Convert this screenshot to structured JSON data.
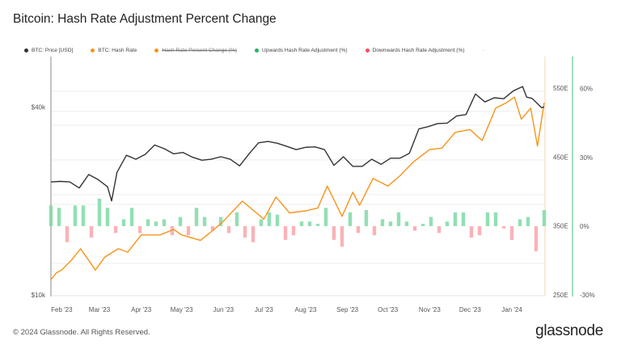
{
  "title": "Bitcoin: Hash Rate Adjustment Percent Change",
  "footer": "© 2024 Glassnode. All Rights Reserved.",
  "logo": "glassnode",
  "colors": {
    "price": "#333333",
    "hash_rate": "#f7931a",
    "up": "#7fd9a6",
    "down": "#f9a5ab",
    "pct_axis": "#7fd9a6",
    "hash_axis": "#fbe3c8"
  },
  "legend": [
    {
      "label": "BTC: Price [USD]",
      "color": "#333333",
      "hidden": false
    },
    {
      "label": "BTC: Hash Rate",
      "color": "#f7931a",
      "hidden": false
    },
    {
      "label": "Hash Rate Percent Change (%)",
      "color": "#f7931a",
      "hidden": true
    },
    {
      "label": "Upwards Hash Rate Adjustment (%)",
      "color": "#22b35e",
      "hidden": false
    },
    {
      "label": "Downwards Hash Rate Adjustment (%)",
      "color": "#f0505a",
      "hidden": false
    },
    {
      "label": "-",
      "color": "",
      "hidden": false
    }
  ],
  "chart_data": {
    "type": "line",
    "title": "Bitcoin: Hash Rate Adjustment Percent Change",
    "grid": true,
    "legend_position": "top",
    "x_ticks": [
      "Feb '23",
      "Mar '23",
      "Apr '23",
      "May '23",
      "Jun '23",
      "Jul '23",
      "Aug '23",
      "Sep '23",
      "Oct '23",
      "Nov '23",
      "Dec '23",
      "Jan '24"
    ],
    "x_tick_dates": [
      "2023-02-01",
      "2023-03-01",
      "2023-04-01",
      "2023-05-01",
      "2023-06-01",
      "2023-07-01",
      "2023-08-01",
      "2023-09-01",
      "2023-10-01",
      "2023-11-01",
      "2023-12-01",
      "2024-01-01"
    ],
    "xlim": [
      "2023-01-24",
      "2024-01-25"
    ],
    "axes": {
      "price": {
        "scale": "log",
        "ylim": [
          10000,
          58000
        ],
        "ticks": [
          {
            "value": 10000,
            "label": "$10k"
          },
          {
            "value": 40000,
            "label": "$40k"
          }
        ]
      },
      "hash_rate": {
        "scale": "linear",
        "ylim": [
          250,
          596
        ],
        "ticks": [
          {
            "value": 250,
            "label": "250E"
          },
          {
            "value": 350,
            "label": "350E"
          },
          {
            "value": 450,
            "label": "450E"
          },
          {
            "value": 550,
            "label": "550E"
          }
        ]
      },
      "percent": {
        "scale": "linear",
        "ylim": [
          -30,
          74
        ],
        "ticks": [
          {
            "value": -30,
            "label": "-30%"
          },
          {
            "value": 0,
            "label": "0%"
          },
          {
            "value": 30,
            "label": "30%"
          },
          {
            "value": 60,
            "label": "60%"
          }
        ]
      }
    },
    "series": [
      {
        "name": "BTC: Price [USD]",
        "axis": "price",
        "points": [
          [
            "2023-01-24",
            23000
          ],
          [
            "2023-01-31",
            23100
          ],
          [
            "2023-02-07",
            23000
          ],
          [
            "2023-02-14",
            22000
          ],
          [
            "2023-02-21",
            24300
          ],
          [
            "2023-02-28",
            23400
          ],
          [
            "2023-03-07",
            22200
          ],
          [
            "2023-03-10",
            20000
          ],
          [
            "2023-03-14",
            24700
          ],
          [
            "2023-03-21",
            28000
          ],
          [
            "2023-03-28",
            27200
          ],
          [
            "2023-04-04",
            28200
          ],
          [
            "2023-04-11",
            30200
          ],
          [
            "2023-04-18",
            29400
          ],
          [
            "2023-04-25",
            28300
          ],
          [
            "2023-05-02",
            28600
          ],
          [
            "2023-05-09",
            27600
          ],
          [
            "2023-05-16",
            27000
          ],
          [
            "2023-05-23",
            27200
          ],
          [
            "2023-05-30",
            27700
          ],
          [
            "2023-06-06",
            27200
          ],
          [
            "2023-06-13",
            25900
          ],
          [
            "2023-06-20",
            28300
          ],
          [
            "2023-06-27",
            30700
          ],
          [
            "2023-07-04",
            31000
          ],
          [
            "2023-07-11",
            30600
          ],
          [
            "2023-07-18",
            29900
          ],
          [
            "2023-07-25",
            29200
          ],
          [
            "2023-08-01",
            29700
          ],
          [
            "2023-08-08",
            29800
          ],
          [
            "2023-08-15",
            29200
          ],
          [
            "2023-08-22",
            26000
          ],
          [
            "2023-08-29",
            27700
          ],
          [
            "2023-09-05",
            25800
          ],
          [
            "2023-09-12",
            25800
          ],
          [
            "2023-09-19",
            27200
          ],
          [
            "2023-09-26",
            26200
          ],
          [
            "2023-10-03",
            27400
          ],
          [
            "2023-10-10",
            27400
          ],
          [
            "2023-10-17",
            28400
          ],
          [
            "2023-10-24",
            34000
          ],
          [
            "2023-10-31",
            34600
          ],
          [
            "2023-11-07",
            35400
          ],
          [
            "2023-11-14",
            35500
          ],
          [
            "2023-11-21",
            37400
          ],
          [
            "2023-11-28",
            37800
          ],
          [
            "2023-12-05",
            44000
          ],
          [
            "2023-12-12",
            41500
          ],
          [
            "2023-12-19",
            42800
          ],
          [
            "2023-12-26",
            42500
          ],
          [
            "2024-01-02",
            45000
          ],
          [
            "2024-01-09",
            46500
          ],
          [
            "2024-01-12",
            43000
          ],
          [
            "2024-01-16",
            42600
          ],
          [
            "2024-01-23",
            39800
          ],
          [
            "2024-01-25",
            40000
          ]
        ]
      },
      {
        "name": "BTC: Hash Rate",
        "axis": "hash_rate",
        "points": [
          [
            "2023-01-24",
            272
          ],
          [
            "2023-01-28",
            282
          ],
          [
            "2023-02-01",
            286
          ],
          [
            "2023-02-08",
            300
          ],
          [
            "2023-02-15",
            317
          ],
          [
            "2023-02-26",
            286
          ],
          [
            "2023-03-05",
            305
          ],
          [
            "2023-03-15",
            317
          ],
          [
            "2023-03-22",
            312
          ],
          [
            "2023-04-01",
            337
          ],
          [
            "2023-04-15",
            337
          ],
          [
            "2023-04-25",
            345
          ],
          [
            "2023-05-01",
            337
          ],
          [
            "2023-05-15",
            329
          ],
          [
            "2023-05-25",
            345
          ],
          [
            "2023-06-01",
            357
          ],
          [
            "2023-06-15",
            386
          ],
          [
            "2023-07-01",
            360
          ],
          [
            "2023-07-10",
            392
          ],
          [
            "2023-07-20",
            369
          ],
          [
            "2023-08-01",
            372
          ],
          [
            "2023-08-10",
            376
          ],
          [
            "2023-08-17",
            408
          ],
          [
            "2023-08-28",
            364
          ],
          [
            "2023-09-05",
            399
          ],
          [
            "2023-09-10",
            380
          ],
          [
            "2023-09-20",
            419
          ],
          [
            "2023-10-01",
            408
          ],
          [
            "2023-10-10",
            423
          ],
          [
            "2023-10-20",
            443
          ],
          [
            "2023-11-01",
            461
          ],
          [
            "2023-11-10",
            463
          ],
          [
            "2023-11-20",
            486
          ],
          [
            "2023-12-01",
            490
          ],
          [
            "2023-12-10",
            474
          ],
          [
            "2023-12-20",
            521
          ],
          [
            "2023-12-28",
            529
          ],
          [
            "2024-01-03",
            537
          ],
          [
            "2024-01-08",
            505
          ],
          [
            "2024-01-15",
            521
          ],
          [
            "2024-01-20",
            466
          ],
          [
            "2024-01-25",
            529
          ]
        ]
      },
      {
        "name": "Upwards Hash Rate Adjustment (%) / Downwards Hash Rate Adjustment (%)",
        "axis": "percent",
        "type": "bar",
        "points": [
          [
            "2023-01-24",
            9
          ],
          [
            "2023-01-30",
            8
          ],
          [
            "2023-02-05",
            -7
          ],
          [
            "2023-02-11",
            9
          ],
          [
            "2023-02-17",
            9
          ],
          [
            "2023-02-23",
            -5
          ],
          [
            "2023-03-01",
            12
          ],
          [
            "2023-03-07",
            8
          ],
          [
            "2023-03-13",
            -3
          ],
          [
            "2023-03-19",
            3
          ],
          [
            "2023-03-25",
            8
          ],
          [
            "2023-03-31",
            -3
          ],
          [
            "2023-04-06",
            3
          ],
          [
            "2023-04-12",
            2
          ],
          [
            "2023-04-18",
            3
          ],
          [
            "2023-04-24",
            -4
          ],
          [
            "2023-04-30",
            4
          ],
          [
            "2023-05-06",
            -4
          ],
          [
            "2023-05-12",
            8
          ],
          [
            "2023-05-18",
            4
          ],
          [
            "2023-05-24",
            -2
          ],
          [
            "2023-05-30",
            4
          ],
          [
            "2023-06-05",
            -3
          ],
          [
            "2023-06-11",
            6
          ],
          [
            "2023-06-17",
            -5
          ],
          [
            "2023-06-23",
            -7
          ],
          [
            "2023-06-29",
            3
          ],
          [
            "2023-07-05",
            6
          ],
          [
            "2023-07-11",
            5
          ],
          [
            "2023-07-17",
            -6
          ],
          [
            "2023-07-23",
            -4
          ],
          [
            "2023-07-29",
            2
          ],
          [
            "2023-08-04",
            2
          ],
          [
            "2023-08-10",
            1
          ],
          [
            "2023-08-16",
            8
          ],
          [
            "2023-08-22",
            -6
          ],
          [
            "2023-08-28",
            -9
          ],
          [
            "2023-09-03",
            6
          ],
          [
            "2023-09-09",
            -3
          ],
          [
            "2023-09-15",
            7
          ],
          [
            "2023-09-21",
            -4
          ],
          [
            "2023-09-27",
            3
          ],
          [
            "2023-10-03",
            2
          ],
          [
            "2023-10-09",
            6
          ],
          [
            "2023-10-15",
            2
          ],
          [
            "2023-10-21",
            -2
          ],
          [
            "2023-10-27",
            1
          ],
          [
            "2023-11-02",
            4
          ],
          [
            "2023-11-08",
            -3
          ],
          [
            "2023-11-14",
            2
          ],
          [
            "2023-11-20",
            6
          ],
          [
            "2023-11-26",
            6
          ],
          [
            "2023-12-02",
            -5
          ],
          [
            "2023-12-08",
            -4
          ],
          [
            "2023-12-14",
            6
          ],
          [
            "2023-12-20",
            6
          ],
          [
            "2023-12-26",
            -1
          ],
          [
            "2024-01-01",
            -6
          ],
          [
            "2024-01-07",
            3
          ],
          [
            "2024-01-13",
            4
          ],
          [
            "2024-01-19",
            -11
          ],
          [
            "2024-01-25",
            7
          ]
        ]
      }
    ]
  }
}
